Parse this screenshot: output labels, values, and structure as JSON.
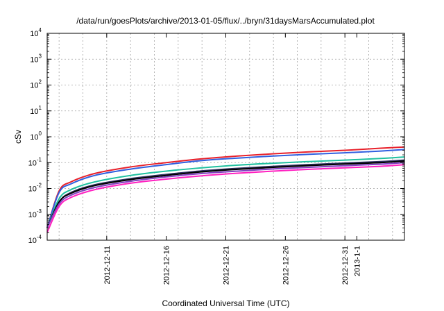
{
  "chart_data": {
    "type": "line",
    "title": "/data/run/goesPlots/archive/2013-01-05/flux/../bryn/31daysMarsAccumulated.plot",
    "xlabel": "Coordinated Universal Time (UTC)",
    "ylabel": "cSv",
    "yscale": "log",
    "ylim": [
      0.0001,
      10000
    ],
    "xlim": [
      "2012-12-06",
      "2013-01-05"
    ],
    "grid": true,
    "y_ticks": [
      {
        "value": 0.0001,
        "label": "10",
        "exp": "-4"
      },
      {
        "value": 0.001,
        "label": "10",
        "exp": "-3"
      },
      {
        "value": 0.01,
        "label": "10",
        "exp": "-2"
      },
      {
        "value": 0.1,
        "label": "10",
        "exp": "-1"
      },
      {
        "value": 1,
        "label": "10",
        "exp": "0"
      },
      {
        "value": 10,
        "label": "10",
        "exp": "1"
      },
      {
        "value": 100,
        "label": "10",
        "exp": "2"
      },
      {
        "value": 1000,
        "label": "10",
        "exp": "3"
      },
      {
        "value": 10000,
        "label": "10",
        "exp": "4"
      }
    ],
    "x_ticks": [
      {
        "value": "2012-12-11",
        "label": "2012-12-11"
      },
      {
        "value": "2012-12-16",
        "label": "2012-12-16"
      },
      {
        "value": "2012-12-21",
        "label": "2012-12-21"
      },
      {
        "value": "2012-12-26",
        "label": "2012-12-26"
      },
      {
        "value": "2012-12-31",
        "label": "2012-12-31"
      },
      {
        "value": "2013-01-01",
        "label": "2013-1-1"
      }
    ],
    "x": [
      "2012-12-06",
      "2012-12-07",
      "2012-12-08",
      "2012-12-10",
      "2012-12-13",
      "2012-12-16",
      "2012-12-19",
      "2012-12-22",
      "2012-12-25",
      "2012-12-28",
      "2012-12-31",
      "2013-01-03",
      "2013-01-05"
    ],
    "series": [
      {
        "color": "#e8202a",
        "values": [
          0.0003,
          0.008,
          0.018,
          0.038,
          0.068,
          0.1,
          0.14,
          0.18,
          0.22,
          0.26,
          0.3,
          0.36,
          0.4
        ]
      },
      {
        "color": "#3060e0",
        "values": [
          0.0003,
          0.007,
          0.015,
          0.032,
          0.056,
          0.084,
          0.12,
          0.15,
          0.18,
          0.21,
          0.24,
          0.28,
          0.32
        ]
      },
      {
        "color": "#20c0a0",
        "values": [
          0.0003,
          0.004,
          0.009,
          0.018,
          0.032,
          0.047,
          0.063,
          0.08,
          0.095,
          0.11,
          0.125,
          0.145,
          0.165
        ]
      },
      {
        "color": "#303060",
        "values": [
          0.0003,
          0.003,
          0.007,
          0.014,
          0.024,
          0.035,
          0.048,
          0.06,
          0.072,
          0.084,
          0.096,
          0.11,
          0.125
        ]
      },
      {
        "color": "#000000",
        "values": [
          0.0003,
          0.003,
          0.0065,
          0.013,
          0.022,
          0.032,
          0.044,
          0.055,
          0.066,
          0.077,
          0.088,
          0.1,
          0.115
        ]
      },
      {
        "color": "#8040c0",
        "values": [
          0.0003,
          0.0025,
          0.0055,
          0.011,
          0.019,
          0.028,
          0.038,
          0.047,
          0.057,
          0.066,
          0.076,
          0.087,
          0.1
        ]
      },
      {
        "color": "#ff20c0",
        "values": [
          0.0002,
          0.002,
          0.0045,
          0.009,
          0.016,
          0.023,
          0.031,
          0.039,
          0.047,
          0.055,
          0.063,
          0.072,
          0.083
        ]
      }
    ]
  }
}
